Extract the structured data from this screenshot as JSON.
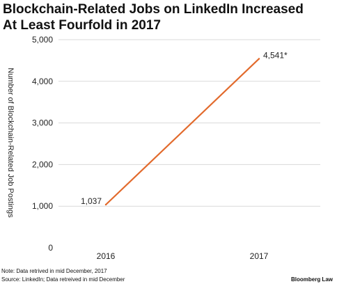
{
  "title_lines": [
    "Blockchain-Related Jobs on LinkedIn Increased",
    "At Least Fourfold in 2017"
  ],
  "chart_data": {
    "type": "line",
    "title": "Blockchain-Related Jobs on LinkedIn Increased At Least Fourfold in 2017",
    "xlabel": "",
    "ylabel": "Number of Blockchain-Related Job Postings",
    "categories": [
      "2016",
      "2017"
    ],
    "series": [
      {
        "values": [
          1037,
          4541
        ],
        "color": "#e26a2c"
      }
    ],
    "data_labels": [
      "1,037",
      "4,541*"
    ],
    "yticks": [
      0,
      1000,
      2000,
      3000,
      4000,
      5000
    ],
    "ytick_labels": [
      "0",
      "1,000",
      "2,000",
      "3,000",
      "4,000",
      "5,000"
    ],
    "ylim": [
      0,
      5000
    ],
    "grid": true,
    "grid_color": "#d9d9d9",
    "legend": "none"
  },
  "footer": {
    "note": "Note: Data retrived in mid December, 2017",
    "source": "Source: LinkedIn; Data retreived in mid December",
    "brand": "Bloomberg Law"
  }
}
